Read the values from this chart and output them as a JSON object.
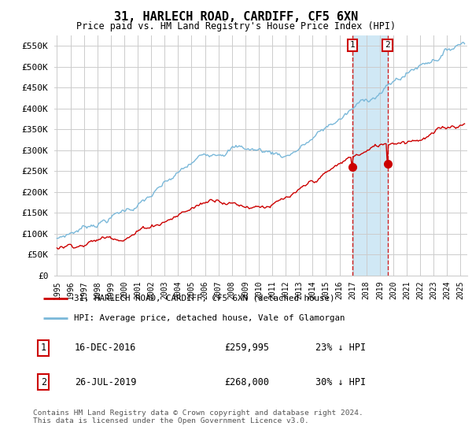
{
  "title": "31, HARLECH ROAD, CARDIFF, CF5 6XN",
  "subtitle": "Price paid vs. HM Land Registry's House Price Index (HPI)",
  "ylabel_ticks": [
    "£0",
    "£50K",
    "£100K",
    "£150K",
    "£200K",
    "£250K",
    "£300K",
    "£350K",
    "£400K",
    "£450K",
    "£500K",
    "£550K"
  ],
  "ytick_values": [
    0,
    50000,
    100000,
    150000,
    200000,
    250000,
    300000,
    350000,
    400000,
    450000,
    500000,
    550000
  ],
  "ylim": [
    0,
    575000
  ],
  "xlim_start": 1994.8,
  "xlim_end": 2025.5,
  "hpi_color": "#7ab8d9",
  "price_color": "#cc0000",
  "marker1_date": 2016.96,
  "marker2_date": 2019.57,
  "marker1_price": 259995,
  "marker2_price": 268000,
  "legend_label_price": "31, HARLECH ROAD, CARDIFF, CF5 6XN (detached house)",
  "legend_label_hpi": "HPI: Average price, detached house, Vale of Glamorgan",
  "footer": "Contains HM Land Registry data © Crown copyright and database right 2024.\nThis data is licensed under the Open Government Licence v3.0.",
  "background_color": "#ffffff",
  "grid_color": "#cccccc",
  "shade_color": "#d0e8f5"
}
